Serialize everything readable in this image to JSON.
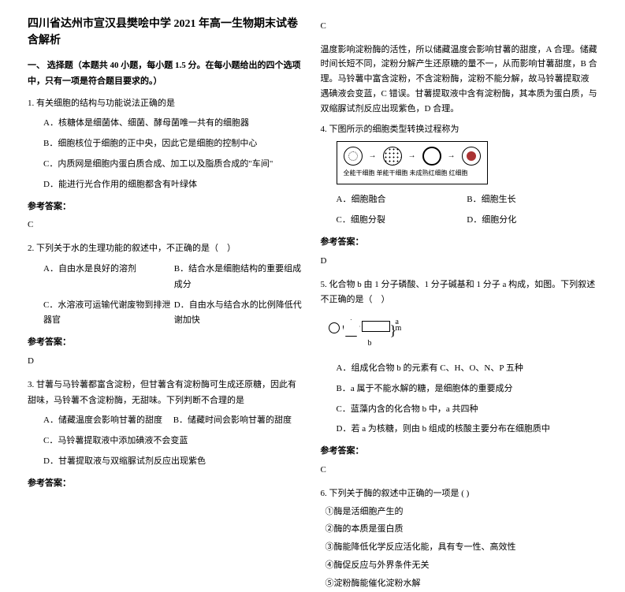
{
  "title": "四川省达州市宣汉县樊哙中学 2021 年高一生物期末试卷含解析",
  "section1": "一、 选择题（本题共 40 小题，每小题 1.5 分。在每小题给出的四个选项中，只有一项是符合题目要求的。）",
  "q1": {
    "stem": "1. 有关细胞的结构与功能说法正确的是",
    "a": "A．核糖体是细菌体、细菌、酵母菌唯一共有的细胞器",
    "b": "B．细胞核位于细胞的正中央，因此它是细胞的控制中心",
    "c": "C．内质网是细胞内蛋白质合成、加工以及脂质合成的\"车间\"",
    "d": "D．能进行光合作用的细胞都含有叶绿体",
    "ans_label": "参考答案：",
    "ans": "C"
  },
  "q2": {
    "stem": "2. 下列关于水的生理功能的叙述中，不正确的是（　）",
    "a": "A．自由水是良好的溶剂",
    "b": "B．结合水是细胞结构的重要组成成分",
    "c": "C．水溶液可运输代谢废物到排泄器官",
    "d": "D．自由水与结合水的比例降低代谢加快",
    "ans_label": "参考答案：",
    "ans": "D"
  },
  "q3": {
    "stem": "3. 甘薯与马铃薯都富含淀粉，但甘薯含有淀粉酶可生成还原糖，因此有甜味，马铃薯不含淀粉酶，无甜味。下列判断不合理的是",
    "a": "A．储藏温度会影响甘薯的甜度     B．储藏时间会影响甘薯的甜度",
    "c": "C．马铃薯提取液中添加碘液不会变蓝",
    "d": "D．甘薯提取液与双缩脲试剂反应出现紫色",
    "ans_label": "参考答案：",
    "ans": "C"
  },
  "q3_explain": "温度影响淀粉酶的活性，所以储藏温度会影响甘薯的甜度，A 合理。储藏时间长短不同，淀粉分解产生还原糖的量不一，从而影响甘薯甜度，B 合理。马铃薯中富含淀粉，不含淀粉酶，淀粉不能分解，故马铃薯提取液遇碘液会变蓝，C 错误。甘薯提取液中含有淀粉酶，其本质为蛋白质，与双缩脲试剂反应出现紫色，D 合理。",
  "q4": {
    "stem": "4. 下图所示的细胞类型转换过程称为",
    "diag_labels": "全能干细胞 单能干细胞 未成熟红细胞 红细胞",
    "a": "A．细胞融合",
    "b": "B．细胞生长",
    "c": "C．细胞分裂",
    "d": "D．细胞分化",
    "ans_label": "参考答案：",
    "ans": "D"
  },
  "q5": {
    "stem": "5. 化合物 b 由 1 分子磷酸、1 分子碱基和 1 分子 a 构成，如图。下列叙述不正确的是（　）",
    "a": "A．组成化合物 b 的元素有 C、H、O、N、P 五种",
    "b": "B．a 属于不能水解的糖，是细胞体的重要成分",
    "c": "C．蓝藻内含的化合物 b 中，a 共四种",
    "d": "D．若 a 为核糖，则由 b 组成的核酸主要分布在细胞质中",
    "ans_label": "参考答案：",
    "ans": "C"
  },
  "q6": {
    "stem": "6. 下列关于酶的叙述中正确的一项是 ( )",
    "i1": "①酶是活细胞产生的",
    "i2": "②酶的本质是蛋白质",
    "i3": "③酶能降低化学反应活化能，具有专一性、高效性",
    "i4": "④酶促反应与外界条件无关",
    "i5": "⑤淀粉酶能催化淀粉水解"
  }
}
